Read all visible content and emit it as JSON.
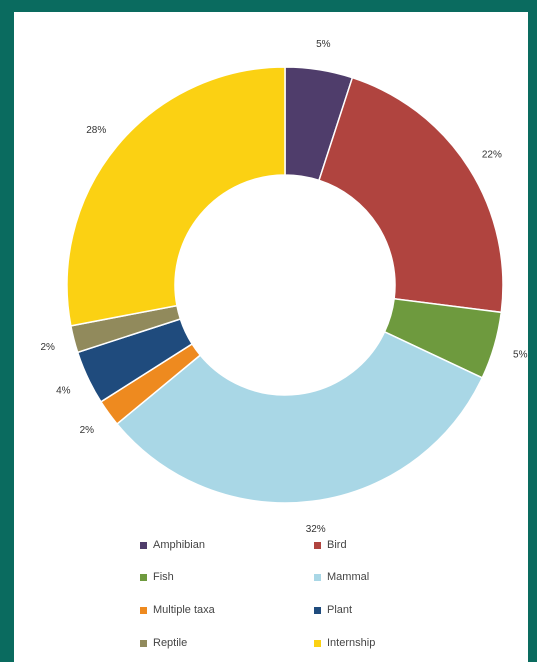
{
  "chart_data": {
    "type": "pie",
    "variant": "donut",
    "categories": [
      "Amphibian",
      "Bird",
      "Fish",
      "Mammal",
      "Multiple taxa",
      "Plant",
      "Reptile",
      "Internship"
    ],
    "values": [
      5,
      22,
      5,
      32,
      2,
      4,
      2,
      28
    ],
    "labels": [
      "5%",
      "22%",
      "5%",
      "32%",
      "2%",
      "4%",
      "2%",
      "28%"
    ],
    "colors": [
      "#4f3d6b",
      "#b0443f",
      "#6e9a3e",
      "#a9d7e6",
      "#ee8a1f",
      "#1f4b7d",
      "#918a5c",
      "#fbd113"
    ],
    "legend_position": "bottom",
    "legend": [
      {
        "label": "Amphibian",
        "color": "#4f3d6b"
      },
      {
        "label": "Bird",
        "color": "#b0443f"
      },
      {
        "label": "Fish",
        "color": "#6e9a3e"
      },
      {
        "label": "Mammal",
        "color": "#a9d7e6"
      },
      {
        "label": "Multiple taxa",
        "color": "#ee8a1f"
      },
      {
        "label": "Plant",
        "color": "#1f4b7d"
      },
      {
        "label": "Reptile",
        "color": "#918a5c"
      },
      {
        "label": "Internship",
        "color": "#fbd113"
      }
    ]
  }
}
